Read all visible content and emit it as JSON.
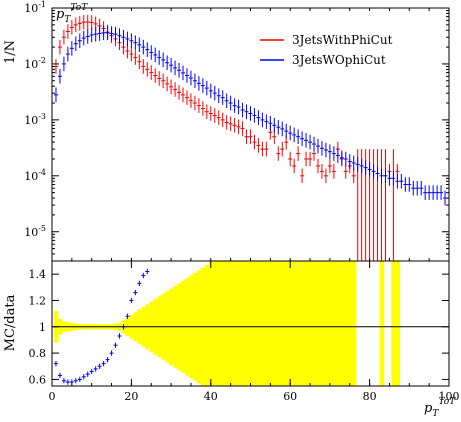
{
  "chart_data": [
    {
      "type": "scatter",
      "panel": "main",
      "title": "p_T^{ToT}",
      "ylabel": "1/N",
      "xlim": [
        0,
        100
      ],
      "ylim": [
        3e-06,
        0.1
      ],
      "yscale": "log",
      "yticks": [
        "10^{-5}",
        "10^{-4}",
        "10^{-3}",
        "10^{-2}",
        "10^{-1}"
      ],
      "legend_position": "top-right",
      "series": [
        {
          "name": "3JetsWithPhiCut",
          "color": "#ff0000",
          "x": [
            1,
            2,
            3,
            4,
            5,
            6,
            7,
            8,
            9,
            10,
            11,
            12,
            13,
            14,
            15,
            16,
            17,
            18,
            19,
            20,
            21,
            22,
            23,
            24,
            25,
            26,
            27,
            28,
            29,
            30,
            31,
            32,
            33,
            34,
            35,
            36,
            37,
            38,
            39,
            40,
            41,
            42,
            43,
            44,
            45,
            46,
            47,
            48,
            49,
            50,
            51,
            52,
            53,
            54,
            55,
            56,
            57,
            58,
            59,
            60,
            61,
            62,
            63,
            64,
            65,
            66,
            67,
            68,
            69,
            70,
            71,
            72,
            73,
            74,
            75,
            76,
            77,
            78,
            79,
            80,
            81,
            82,
            83,
            84,
            85,
            86,
            87
          ],
          "y": [
            0.009,
            0.02,
            0.03,
            0.038,
            0.045,
            0.05,
            0.053,
            0.056,
            0.056,
            0.055,
            0.052,
            0.048,
            0.043,
            0.037,
            0.032,
            0.028,
            0.024,
            0.02,
            0.017,
            0.015,
            0.013,
            0.011,
            0.009,
            0.008,
            0.007,
            0.0062,
            0.0055,
            0.005,
            0.0044,
            0.0039,
            0.0035,
            0.0031,
            0.0028,
            0.0025,
            0.0022,
            0.002,
            0.0018,
            0.0016,
            0.0014,
            0.0013,
            0.0012,
            0.0011,
            0.001,
            0.0009,
            0.00085,
            0.0008,
            0.00075,
            0.0007,
            0.0005,
            0.0005,
            0.0004,
            0.00035,
            0.0003,
            0.0003,
            0.0006,
            0.0005,
            0.00025,
            0.0003,
            0.0004,
            0.0002,
            0.00015,
            0.00025,
            0.0001,
            0.0002,
            0.0002,
            0.00025,
            0.00015,
            0.00012,
            0.0001,
            0.00015,
            0.00012,
            0.0003,
            0.0002,
            0.00012,
            0.00015,
            0.0001,
            0.0,
            0.0,
            0.0,
            0.0,
            0.0,
            0.0,
            0.0,
            0.0,
            0.00012,
            0.0,
            0.00012
          ]
        },
        {
          "name": "3JetsWOphiCut",
          "color": "#0000ff",
          "x": [
            1,
            2,
            3,
            4,
            5,
            6,
            7,
            8,
            9,
            10,
            11,
            12,
            13,
            14,
            15,
            16,
            17,
            18,
            19,
            20,
            21,
            22,
            23,
            24,
            25,
            26,
            27,
            28,
            29,
            30,
            31,
            32,
            33,
            34,
            35,
            36,
            37,
            38,
            39,
            40,
            41,
            42,
            43,
            44,
            45,
            46,
            47,
            48,
            49,
            50,
            51,
            52,
            53,
            54,
            55,
            56,
            57,
            58,
            59,
            60,
            61,
            62,
            63,
            64,
            65,
            66,
            67,
            68,
            69,
            70,
            71,
            72,
            73,
            74,
            75,
            76,
            77,
            78,
            79,
            80,
            81,
            82,
            83,
            84,
            85,
            86,
            87,
            88,
            89,
            90,
            91,
            92,
            93,
            94,
            95,
            96,
            97,
            98,
            99
          ],
          "y": [
            0.0028,
            0.006,
            0.01,
            0.015,
            0.019,
            0.023,
            0.026,
            0.029,
            0.031,
            0.033,
            0.034,
            0.035,
            0.036,
            0.036,
            0.035,
            0.034,
            0.032,
            0.03,
            0.028,
            0.026,
            0.024,
            0.022,
            0.02,
            0.018,
            0.016,
            0.0145,
            0.013,
            0.0118,
            0.0105,
            0.0095,
            0.0085,
            0.0077,
            0.0069,
            0.0062,
            0.0056,
            0.005,
            0.0045,
            0.0041,
            0.0037,
            0.0033,
            0.003,
            0.0027,
            0.0025,
            0.0022,
            0.002,
            0.0018,
            0.0017,
            0.0015,
            0.0014,
            0.0013,
            0.0012,
            0.0011,
            0.001,
            0.00093,
            0.00087,
            0.0008,
            0.00074,
            0.00069,
            0.00063,
            0.00058,
            0.00054,
            0.0005,
            0.00046,
            0.00043,
            0.0004,
            0.00037,
            0.00034,
            0.00031,
            0.00029,
            0.00027,
            0.00025,
            0.00023,
            0.00021,
            0.0002,
            0.00018,
            0.00017,
            0.00016,
            0.00015,
            0.00014,
            0.00013,
            0.00012,
            0.00011,
            0.0001,
            0.0001,
            9e-05,
            9e-05,
            8e-05,
            8e-05,
            7e-05,
            7e-05,
            6e-05,
            6e-05,
            6e-05,
            5e-05,
            5e-05,
            5e-05,
            5e-05,
            5e-05,
            4e-05
          ]
        }
      ]
    },
    {
      "type": "scatter",
      "panel": "ratio",
      "ylabel": "MC/data",
      "xlabel": "p_T^{ToT}",
      "xlim": [
        0,
        100
      ],
      "ylim": [
        0.55,
        1.5
      ],
      "yticks": [
        0.6,
        0.8,
        1,
        1.2,
        1.4
      ],
      "xticks": [
        0,
        20,
        40,
        60,
        80,
        100
      ],
      "reference_line": 1,
      "band_color": "#ffff00",
      "band": {
        "x": [
          1,
          2,
          3,
          4,
          5,
          6,
          7,
          8,
          9,
          10,
          11,
          12,
          13,
          14,
          15,
          16,
          17,
          18,
          19,
          20,
          21,
          22,
          23,
          24,
          25,
          26,
          27,
          28,
          29,
          30,
          31,
          32,
          33,
          34,
          35,
          36,
          37,
          38,
          39,
          40,
          41,
          42,
          43,
          44,
          45,
          46,
          47,
          48,
          49,
          50,
          51,
          52,
          53,
          54,
          55,
          56,
          57,
          58,
          59,
          60,
          61,
          62,
          63,
          64,
          65,
          66,
          67,
          68,
          69,
          70,
          71,
          72,
          73,
          74,
          75,
          76,
          83,
          86,
          87
        ],
        "halfwidth": [
          0.12,
          0.06,
          0.04,
          0.035,
          0.03,
          0.025,
          0.022,
          0.02,
          0.02,
          0.02,
          0.02,
          0.02,
          0.02,
          0.02,
          0.02,
          0.025,
          0.03,
          0.05,
          0.07,
          0.09,
          0.11,
          0.13,
          0.15,
          0.17,
          0.19,
          0.21,
          0.23,
          0.25,
          0.27,
          0.29,
          0.31,
          0.33,
          0.35,
          0.37,
          0.39,
          0.41,
          0.43,
          0.45,
          0.47,
          0.49,
          0.5,
          0.5,
          0.5,
          0.5,
          0.5,
          0.5,
          0.5,
          0.5,
          0.5,
          0.5,
          0.5,
          0.5,
          0.5,
          0.5,
          0.5,
          0.5,
          0.5,
          0.5,
          0.5,
          0.5,
          0.5,
          0.5,
          0.5,
          0.5,
          0.5,
          0.5,
          0.5,
          0.5,
          0.5,
          0.5,
          0.5,
          0.5,
          0.5,
          0.5,
          0.5,
          0.5,
          0.5,
          0.5,
          0.5
        ]
      },
      "series": [
        {
          "name": "3JetsWOphiCut",
          "color": "#0000ff",
          "x": [
            1,
            2,
            3,
            4,
            5,
            6,
            7,
            8,
            9,
            10,
            11,
            12,
            13,
            14,
            15,
            16,
            17,
            18,
            19,
            20,
            21,
            22,
            23,
            24
          ],
          "y": [
            0.72,
            0.63,
            0.59,
            0.58,
            0.58,
            0.59,
            0.6,
            0.62,
            0.64,
            0.66,
            0.68,
            0.7,
            0.72,
            0.75,
            0.8,
            0.86,
            0.93,
            1.0,
            1.08,
            1.2,
            1.26,
            1.33,
            1.39,
            1.42
          ]
        }
      ]
    }
  ]
}
